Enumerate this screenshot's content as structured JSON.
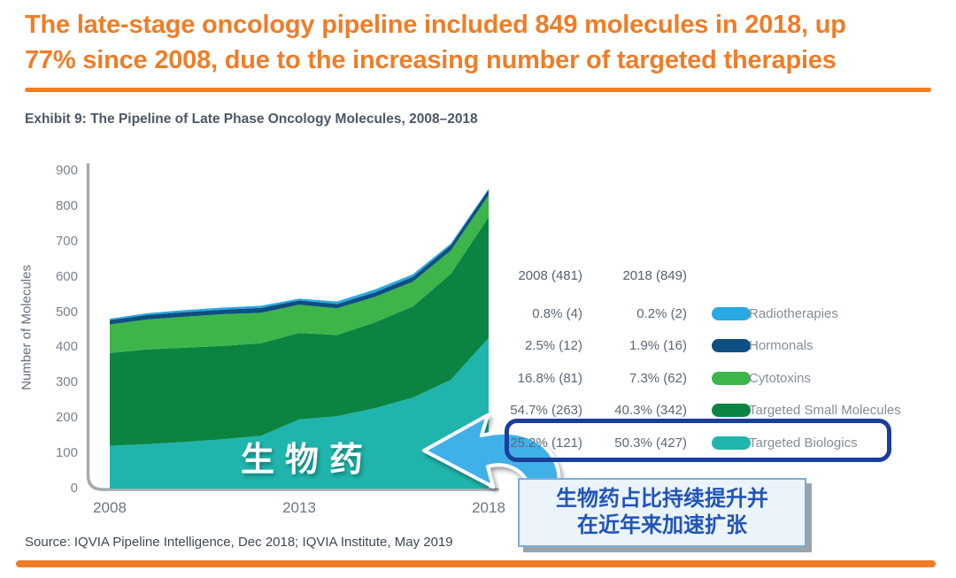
{
  "title": {
    "line1": "The late-stage oncology pipeline included 849 molecules in 2018, up",
    "line2": "77% since 2008, due to the increasing number of targeted therapies"
  },
  "exhibit_title": "Exhibit 9: The Pipeline of Late Phase Oncology Molecules, 2008–2018",
  "source": "Source: IQVIA Pipeline Intelligence, Dec 2018; IQVIA Institute, May 2019",
  "colors": {
    "accent_orange": "#EF7D27",
    "radiotherapies": "#29A9E1",
    "hormonals": "#0F4E80",
    "cytotoxins": "#3DB54A",
    "targeted_small_molecules": "#0A8440",
    "targeted_biologics": "#1FB5AC",
    "highlight_border": "#1B3E9B",
    "axis_gray": "#A6ABB1",
    "callout_text": "#2154BB",
    "arrow_blue": "#3FB0E8"
  },
  "chart_data": {
    "type": "area",
    "stacked": true,
    "title": "The Pipeline of Late Phase Oncology Molecules, 2008–2018",
    "xlabel": "",
    "ylabel": "Number of Molecules",
    "ylim": [
      0,
      900
    ],
    "y_ticks": [
      0,
      100,
      200,
      300,
      400,
      500,
      600,
      700,
      800,
      900
    ],
    "x": [
      2008,
      2009,
      2010,
      2011,
      2012,
      2013,
      2014,
      2015,
      2016,
      2017,
      2018
    ],
    "x_tick_labels": [
      "2008",
      "2013",
      "2018"
    ],
    "grid": false,
    "legend_position": "right",
    "totals": {
      "2008": 481,
      "2018": 849
    },
    "series": [
      {
        "name": "Targeted Biologics",
        "color": "#1FB5AC",
        "values": [
          121,
          126,
          132,
          140,
          150,
          196,
          205,
          228,
          258,
          308,
          427
        ]
      },
      {
        "name": "Targeted Small Molecules",
        "color": "#0A8440",
        "values": [
          263,
          268,
          267,
          264,
          262,
          245,
          230,
          243,
          258,
          300,
          342
        ]
      },
      {
        "name": "Cytotoxins",
        "color": "#3DB54A",
        "values": [
          81,
          85,
          88,
          90,
          86,
          80,
          76,
          72,
          70,
          66,
          62
        ]
      },
      {
        "name": "Hormonals",
        "color": "#0F4E80",
        "values": [
          12,
          13,
          13,
          13,
          14,
          12,
          12,
          13,
          14,
          15,
          16
        ]
      },
      {
        "name": "Radiotherapies",
        "color": "#29A9E1",
        "values": [
          4,
          5,
          6,
          6,
          6,
          5,
          7,
          8,
          7,
          5,
          2
        ]
      }
    ],
    "annotations": {
      "area_label": "生物药",
      "callout_line1": "生物药占比持续提升并",
      "callout_line2": "在近年来加速扩张"
    }
  },
  "legend": {
    "header": {
      "col2008": "2008 (481)",
      "col2018": "2018 (849)"
    },
    "rows": [
      {
        "pct2008": "0.8% (4)",
        "pct2018": "0.2% (2)",
        "label": "Radiotherapies",
        "color": "#29A9E1",
        "highlighted": false
      },
      {
        "pct2008": "2.5% (12)",
        "pct2018": "1.9% (16)",
        "label": "Hormonals",
        "color": "#0F4E80",
        "highlighted": false
      },
      {
        "pct2008": "16.8% (81)",
        "pct2018": "7.3% (62)",
        "label": "Cytotoxins",
        "color": "#3DB54A",
        "highlighted": false
      },
      {
        "pct2008": "54.7% (263)",
        "pct2018": "40.3% (342)",
        "label": "Targeted Small Molecules",
        "color": "#0A8440",
        "highlighted": false
      },
      {
        "pct2008": "25.2% (121)",
        "pct2018": "50.3% (427)",
        "label": "Targeted Biologics",
        "color": "#1FB5AC",
        "highlighted": true
      }
    ]
  }
}
